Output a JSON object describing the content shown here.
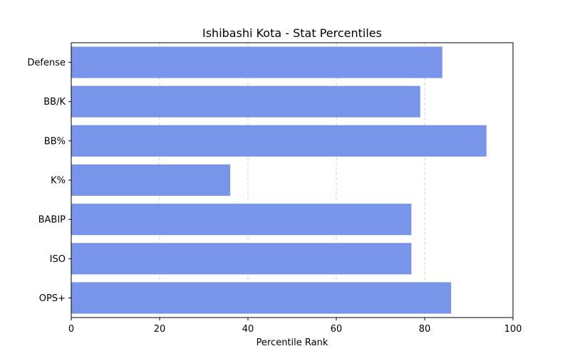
{
  "chart_data": {
    "type": "bar",
    "orientation": "horizontal",
    "title": "Ishibashi Kota - Stat Percentiles",
    "xlabel": "Percentile Rank",
    "ylabel": "",
    "categories": [
      "OPS+",
      "ISO",
      "BABIP",
      "K%",
      "BB%",
      "BB/K",
      "Defense"
    ],
    "values": [
      86,
      77,
      77,
      36,
      94,
      79,
      84
    ],
    "xlim": [
      0,
      100
    ],
    "xticks": [
      0,
      20,
      40,
      60,
      80,
      100
    ],
    "grid": "x-dashed",
    "bar_color": "#7895ea"
  }
}
